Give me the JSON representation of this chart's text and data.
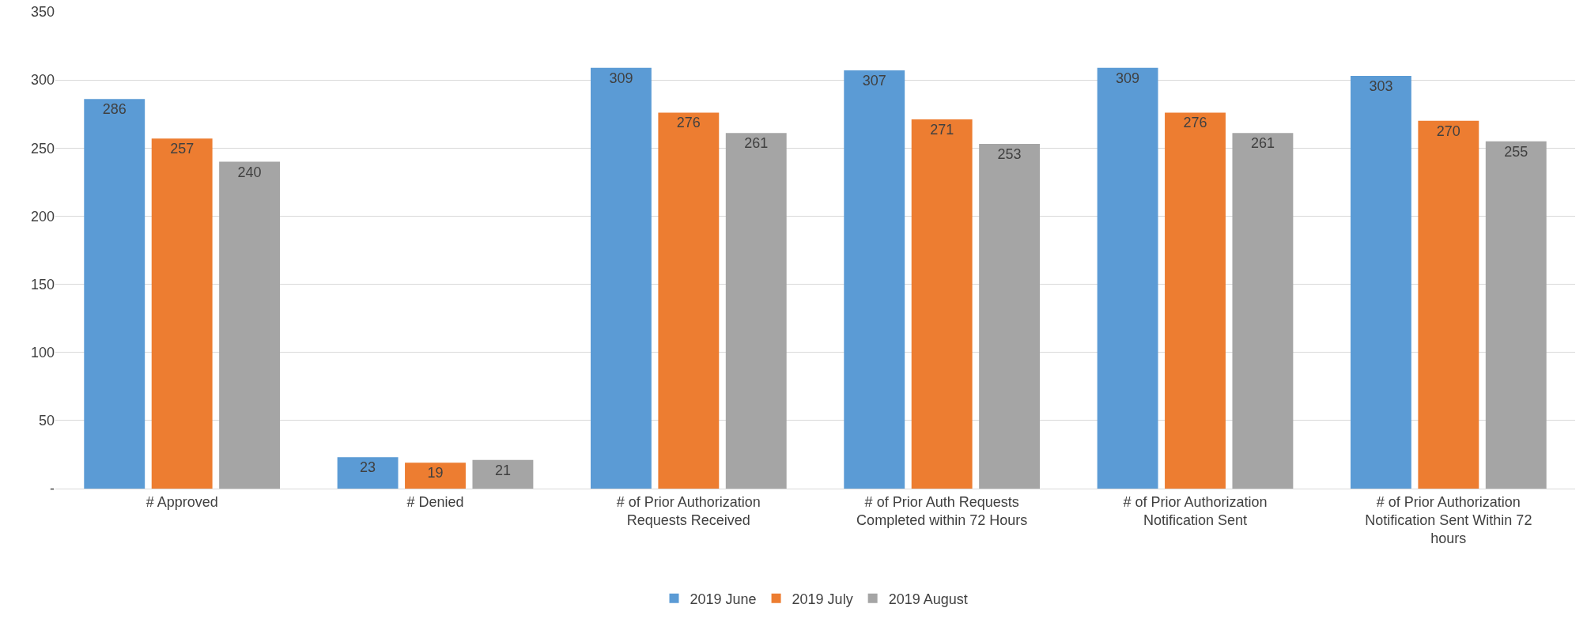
{
  "chart_data": {
    "type": "bar",
    "categories": [
      "# Approved",
      "# Denied",
      "# of Prior Authorization Requests Received",
      "# of Prior Auth Requests Completed within 72 Hours",
      "# of Prior Authorization Notification Sent",
      "# of Prior Authorization Notification Sent Within 72 hours"
    ],
    "series": [
      {
        "name": "2019 June",
        "color": "#5b9bd5",
        "values": [
          286,
          23,
          309,
          307,
          309,
          303
        ]
      },
      {
        "name": "2019 July",
        "color": "#ed7d31",
        "values": [
          257,
          19,
          276,
          271,
          276,
          270
        ]
      },
      {
        "name": "2019 August",
        "color": "#a5a5a5",
        "values": [
          240,
          21,
          261,
          253,
          261,
          255
        ]
      }
    ],
    "ylim": [
      0,
      350
    ],
    "yticks": [
      {
        "value": 0,
        "label": "-"
      },
      50,
      100,
      150,
      200,
      250,
      300,
      350
    ],
    "grid": "y",
    "legend": "bottom",
    "data_labels": true
  }
}
